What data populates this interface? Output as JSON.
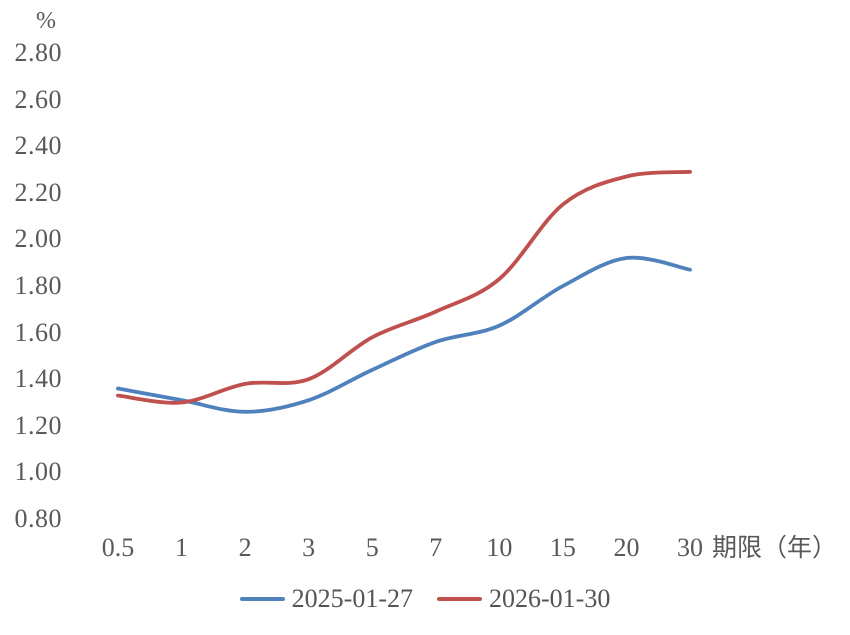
{
  "chart_data": {
    "type": "line",
    "title": "",
    "ylabel": "%",
    "xlabel": "期限（年）",
    "categories": [
      "0.5",
      "1",
      "2",
      "3",
      "5",
      "7",
      "10",
      "15",
      "20",
      "30"
    ],
    "series": [
      {
        "name": "2025-01-27",
        "color": "#4F81BD",
        "values": [
          1.36,
          1.31,
          1.26,
          1.31,
          1.44,
          1.56,
          1.63,
          1.8,
          1.92,
          1.87
        ]
      },
      {
        "name": "2026-01-30",
        "color": "#C0504D",
        "values": [
          1.33,
          1.3,
          1.38,
          1.4,
          1.58,
          1.69,
          1.83,
          2.15,
          2.27,
          2.29
        ]
      }
    ],
    "ylim": [
      0.8,
      2.8
    ],
    "ytick_step": 0.2,
    "yticks": [
      "0.80",
      "1.00",
      "1.20",
      "1.40",
      "1.60",
      "1.80",
      "2.00",
      "2.20",
      "2.40",
      "2.60",
      "2.80"
    ],
    "grid": false,
    "axis_lines": false,
    "legend_position": "bottom",
    "line_smoothing": true,
    "text_color": "#595959"
  }
}
